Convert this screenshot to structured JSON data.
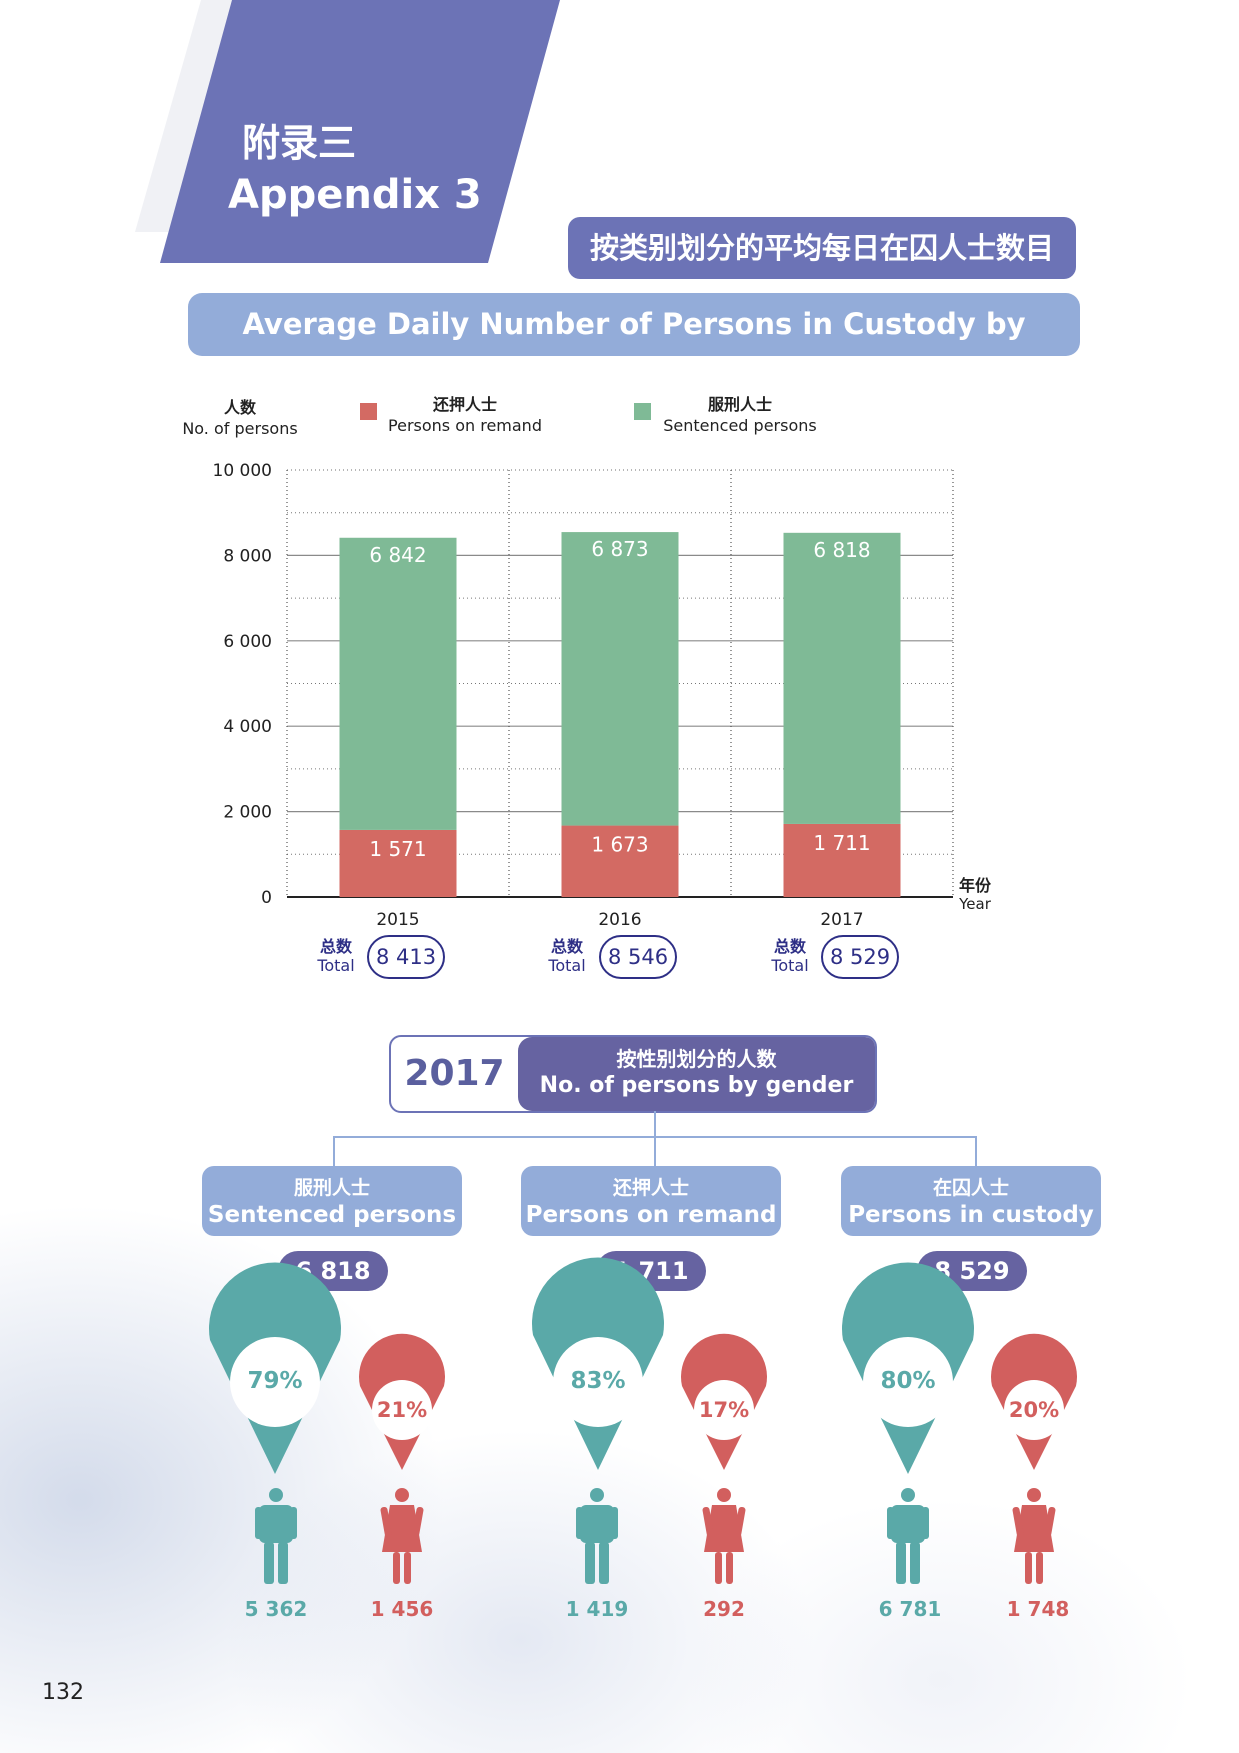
{
  "header": {
    "appendix_cn": "附录三",
    "appendix_en": "Appendix 3",
    "title_cn": "按类别划分的平均每日在囚人士数目",
    "title_en": "Average Daily Number of Persons in Custody by Category"
  },
  "colors": {
    "remand": "#d36a63",
    "sentenced": "#7fba96",
    "male": "#5aa9a8",
    "female": "#d25f5e",
    "accent": "#6663a1"
  },
  "legend": {
    "y_cn": "人数",
    "y_en": "No. of persons",
    "remand_cn": "还押人士",
    "remand_en": "Persons on remand",
    "sentenced_cn": "服刑人士",
    "sentenced_en": "Sentenced persons",
    "x_cn": "年份",
    "x_en": "Year",
    "total_cn": "总数",
    "total_en": "Total"
  },
  "chart_data": {
    "type": "bar",
    "stacked": true,
    "categories": [
      "2015",
      "2016",
      "2017"
    ],
    "series": [
      {
        "name": "还押人士 Persons on remand",
        "values": [
          1571,
          1673,
          1711
        ],
        "labels": [
          "1 571",
          "1 673",
          "1 711"
        ]
      },
      {
        "name": "服刑人士 Sentenced persons",
        "values": [
          6842,
          6873,
          6818
        ],
        "labels": [
          "6 842",
          "6 873",
          "6 818"
        ]
      }
    ],
    "totals": [
      "8 413",
      "8 546",
      "8 529"
    ],
    "ylim": [
      0,
      10000
    ],
    "yticks": [
      0,
      2000,
      4000,
      6000,
      8000,
      10000
    ],
    "ytick_labels": [
      "0",
      "2 000",
      "4 000",
      "6 000",
      "8 000",
      "10 000"
    ],
    "ylabel": "人数 No. of persons",
    "xlabel": "年份 Year",
    "grid": true
  },
  "gender": {
    "year": "2017",
    "title_cn": "按性别划分的人数",
    "title_en": "No. of persons by gender",
    "groups": [
      {
        "cn": "服刑人士",
        "en": "Sentenced persons",
        "total": "6 818",
        "male_pct": "79%",
        "female_pct": "21%",
        "male_count": "5 362",
        "female_count": "1 456"
      },
      {
        "cn": "还押人士",
        "en": "Persons on remand",
        "total": "1 711",
        "male_pct": "83%",
        "female_pct": "17%",
        "male_count": "1 419",
        "female_count": "292"
      },
      {
        "cn": "在囚人士",
        "en": "Persons in custody",
        "total": "8 529",
        "male_pct": "80%",
        "female_pct": "20%",
        "male_count": "6 781",
        "female_count": "1 748"
      }
    ]
  },
  "page_number": "132"
}
